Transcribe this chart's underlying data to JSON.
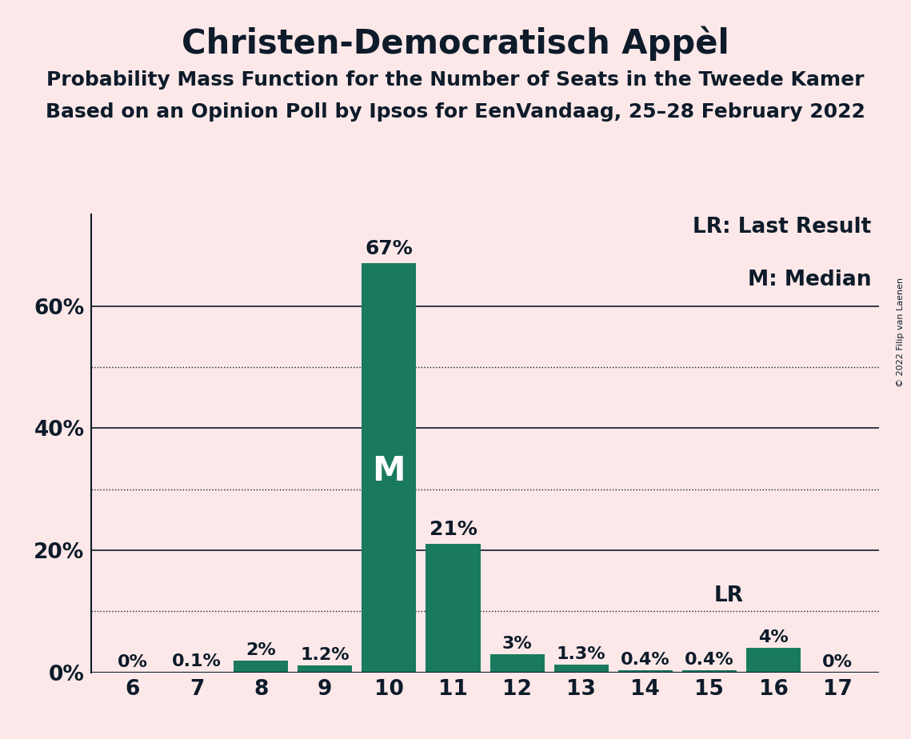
{
  "title": "Christen-Democratisch Appèl",
  "subtitle1": "Probability Mass Function for the Number of Seats in the Tweede Kamer",
  "subtitle2": "Based on an Opinion Poll by Ipsos for EenVandaag, 25–28 February 2022",
  "copyright": "© 2022 Filip van Laenen",
  "categories": [
    6,
    7,
    8,
    9,
    10,
    11,
    12,
    13,
    14,
    15,
    16,
    17
  ],
  "values": [
    0.0,
    0.1,
    2.0,
    1.2,
    67.0,
    21.0,
    3.0,
    1.3,
    0.4,
    0.4,
    4.0,
    0.0
  ],
  "labels": [
    "0%",
    "0.1%",
    "2%",
    "1.2%",
    "67%",
    "21%",
    "3%",
    "1.3%",
    "0.4%",
    "0.4%",
    "4%",
    "0%"
  ],
  "bar_color": "#1a7a5e",
  "background_color": "#fce8e8",
  "text_color": "#0d1b2a",
  "median_seat": 10,
  "last_result_seat": 15,
  "yticks": [
    0,
    20,
    40,
    60
  ],
  "yticks_dotted": [
    10,
    30,
    50
  ],
  "ylim": [
    0,
    75
  ],
  "legend_lr": "LR: Last Result",
  "legend_m": "M: Median",
  "title_fontsize": 30,
  "subtitle_fontsize": 18,
  "label_fontsize": 16,
  "tick_fontsize": 19,
  "legend_fontsize": 19,
  "median_label_fontsize": 30
}
